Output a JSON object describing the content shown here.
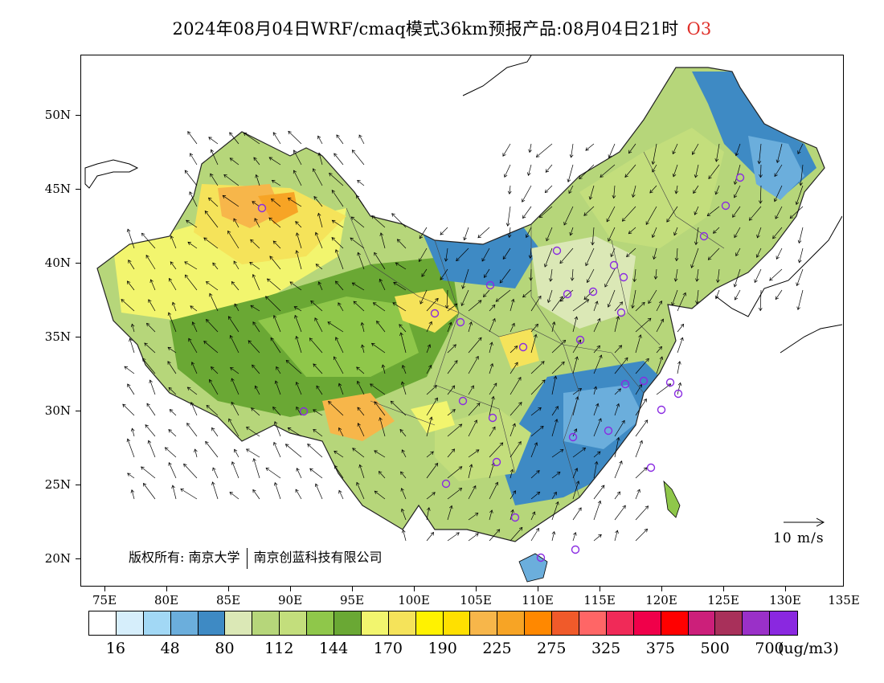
{
  "title": {
    "main": "2024年08月04日WRF/cmaq模式36km预报产品:08月04日21时",
    "pollutant": "O3",
    "pollutant_color": "#e0302a"
  },
  "axes": {
    "lat_labels": [
      "50N",
      "45N",
      "40N",
      "35N",
      "30N",
      "25N",
      "20N"
    ],
    "lon_labels": [
      "75E",
      "80E",
      "85E",
      "90E",
      "95E",
      "100E",
      "105E",
      "110E",
      "115E",
      "120E",
      "125E",
      "130E",
      "135E"
    ]
  },
  "copyright": {
    "prefix": "版权所有:",
    "org1": "南京大学",
    "org2": "南京创蓝科技有限公司"
  },
  "wind_legend": {
    "label": "10 m/s"
  },
  "colorbar": {
    "colors": [
      "#ffffff",
      "#d6eefb",
      "#a2d8f5",
      "#6baedc",
      "#3e8ac4",
      "#dbe8b6",
      "#b6d67a",
      "#c3de7c",
      "#8fc74a",
      "#6aa834",
      "#f2f56e",
      "#f5e35a",
      "#fff200",
      "#ffe000",
      "#f7b64a",
      "#f7a425",
      "#ff8800",
      "#f05a2a",
      "#ff6666",
      "#f02a58",
      "#f0004a",
      "#ff0000",
      "#cc1f7a",
      "#a8305a",
      "#9a30c8",
      "#8a28e0"
    ],
    "labels": [
      "16",
      "48",
      "80",
      "112",
      "144",
      "170",
      "190",
      "225",
      "275",
      "325",
      "375",
      "500",
      "700"
    ],
    "unit": "(ug/m3)"
  },
  "stations_color": "#8a2be2"
}
